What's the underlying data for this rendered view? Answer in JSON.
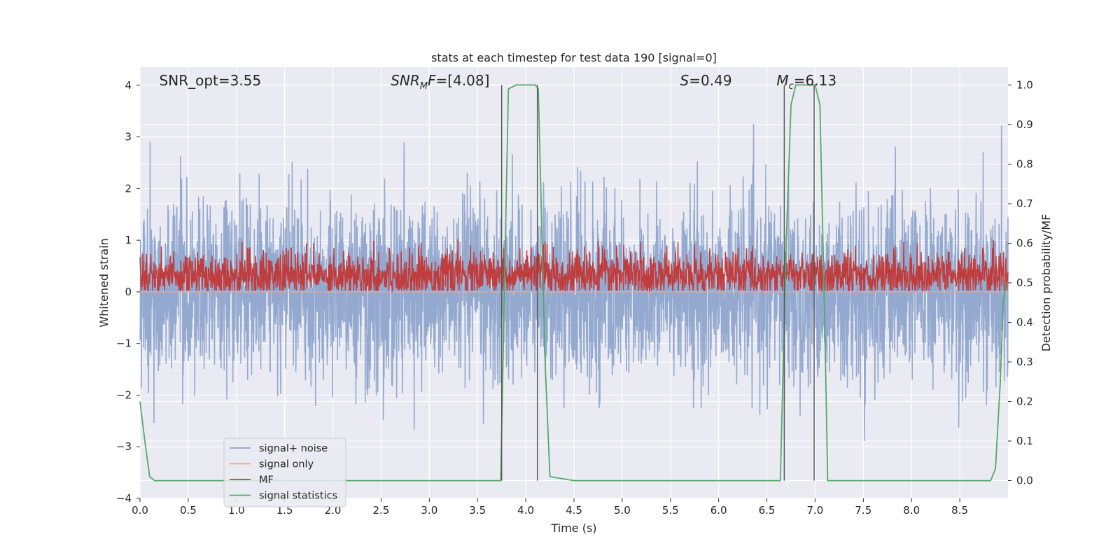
{
  "chart_data": {
    "type": "line",
    "title": "stats at each timestep for test data 190 [signal=0]",
    "xlabel": "Time (s)",
    "ylabel": "Whitened strain",
    "y2label": "Detection probability/MF",
    "xlim": [
      0.0,
      9.0
    ],
    "ylim": [
      -4,
      4.35
    ],
    "y2lim": [
      -0.045,
      1.045
    ],
    "xticks": [
      "0.0",
      "0.5",
      "1.0",
      "1.5",
      "2.0",
      "2.5",
      "3.0",
      "3.5",
      "4.0",
      "4.5",
      "5.0",
      "5.5",
      "6.0",
      "6.5",
      "7.0",
      "7.5",
      "8.0",
      "8.5"
    ],
    "yticks": [
      "−4",
      "−3",
      "−2",
      "−1",
      "0",
      "1",
      "2",
      "3",
      "4"
    ],
    "y2ticks": [
      "0.0",
      "0.1",
      "0.2",
      "0.3",
      "0.4",
      "0.5",
      "0.6",
      "0.7",
      "0.8",
      "0.9",
      "1.0"
    ],
    "grid": true,
    "legend_position": "lower-left",
    "annotations": [
      {
        "text": "SNR_opt=3.55",
        "x": 0.2,
        "y": 4.0
      },
      {
        "text": "SNR",
        "sub": "M",
        "suffix": "F=[4.08]",
        "italic": true,
        "x": 2.6,
        "y": 4.0
      },
      {
        "text": "S",
        "suffix": "=0.49",
        "italic": true,
        "x": 5.6,
        "y": 4.0
      },
      {
        "text": "M",
        "sub": "c",
        "suffix": "=6.13",
        "italic": true,
        "x": 6.6,
        "y": 4.0
      }
    ],
    "vlines": [
      {
        "x": 3.75,
        "y2": [
          0.0,
          1.0
        ]
      },
      {
        "x": 4.12,
        "y2": [
          0.0,
          1.0
        ]
      },
      {
        "x": 6.68,
        "y2": [
          0.0,
          1.0
        ]
      },
      {
        "x": 6.99,
        "y2": [
          0.0,
          1.0
        ]
      }
    ],
    "series": [
      {
        "name": "signal+ noise",
        "color": "#8fa5cc",
        "axis": "left",
        "kind": "noise",
        "std": 0.85,
        "x_range": [
          0.0,
          9.0
        ]
      },
      {
        "name": "signal only",
        "color": "#e8a88a",
        "axis": "left",
        "values": [
          0.0
        ],
        "constant": true
      },
      {
        "name": "MF",
        "color": "#c03d3e",
        "axis": "right",
        "kind": "noise",
        "baseline": 0.52,
        "amplitude": 0.03,
        "x_range": [
          0.0,
          9.0
        ]
      },
      {
        "name": "signal statistics",
        "color": "#55a868",
        "axis": "right",
        "x": [
          0.0,
          0.05,
          0.1,
          0.15,
          0.5,
          1.0,
          2.0,
          3.0,
          3.5,
          3.74,
          3.78,
          3.82,
          3.9,
          4.0,
          4.1,
          4.13,
          4.2,
          4.25,
          4.5,
          5.0,
          6.0,
          6.5,
          6.6,
          6.64,
          6.7,
          6.75,
          6.8,
          6.9,
          7.0,
          7.05,
          7.1,
          7.13,
          7.3,
          8.0,
          8.5,
          8.82,
          8.87,
          8.92,
          8.95,
          8.98
        ],
        "values": [
          0.2,
          0.1,
          0.01,
          0.0,
          0.0,
          0.0,
          0.0,
          0.0,
          0.0,
          0.0,
          0.5,
          0.99,
          1.0,
          1.0,
          1.0,
          0.99,
          0.3,
          0.01,
          0.0,
          0.0,
          0.0,
          0.0,
          0.0,
          0.0,
          0.6,
          0.95,
          1.0,
          1.0,
          1.0,
          0.95,
          0.4,
          0.0,
          0.0,
          0.0,
          0.0,
          0.0,
          0.03,
          0.25,
          0.45,
          0.5
        ]
      }
    ]
  }
}
